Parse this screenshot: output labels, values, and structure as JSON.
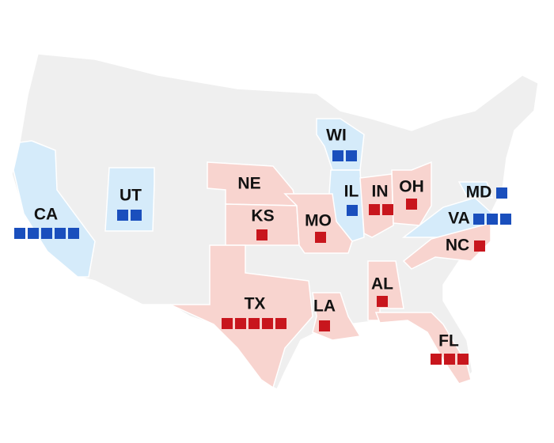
{
  "states": [
    {
      "label": "CA",
      "seats": 5,
      "fill": "#d5ebfa",
      "color": "#1a4fbd"
    },
    {
      "label": "UT",
      "seats": 2,
      "fill": "#d5ebfa",
      "color": "#1a4fbd"
    },
    {
      "label": "WI",
      "seats": 2,
      "fill": "#d5ebfa",
      "color": "#1a4fbd"
    },
    {
      "label": "IL",
      "seats": 1,
      "fill": "#d5ebfa",
      "color": "#1a4fbd"
    },
    {
      "label": "MD",
      "seats": 1,
      "fill": "#d5ebfa",
      "color": "#1a4fbd"
    },
    {
      "label": "VA",
      "seats": 3,
      "fill": "#d5ebfa",
      "color": "#1a4fbd"
    },
    {
      "label": "NE",
      "seats": 0,
      "fill": "#f8d4cf",
      "color": "#c8161d"
    },
    {
      "label": "KS",
      "seats": 1,
      "fill": "#f8d4cf",
      "color": "#c8161d"
    },
    {
      "label": "MO",
      "seats": 1,
      "fill": "#f8d4cf",
      "color": "#c8161d"
    },
    {
      "label": "IN",
      "seats": 2,
      "fill": "#f8d4cf",
      "color": "#c8161d"
    },
    {
      "label": "OH",
      "seats": 1,
      "fill": "#f8d4cf",
      "color": "#c8161d"
    },
    {
      "label": "NC",
      "seats": 1,
      "fill": "#f8d4cf",
      "color": "#c8161d"
    },
    {
      "label": "TX",
      "seats": 5,
      "fill": "#f8d4cf",
      "color": "#c8161d"
    },
    {
      "label": "LA",
      "seats": 1,
      "fill": "#f8d4cf",
      "color": "#c8161d"
    },
    {
      "label": "AL",
      "seats": 1,
      "fill": "#f8d4cf",
      "color": "#c8161d"
    },
    {
      "label": "FL",
      "seats": 3,
      "fill": "#f8d4cf",
      "color": "#c8161d"
    }
  ]
}
